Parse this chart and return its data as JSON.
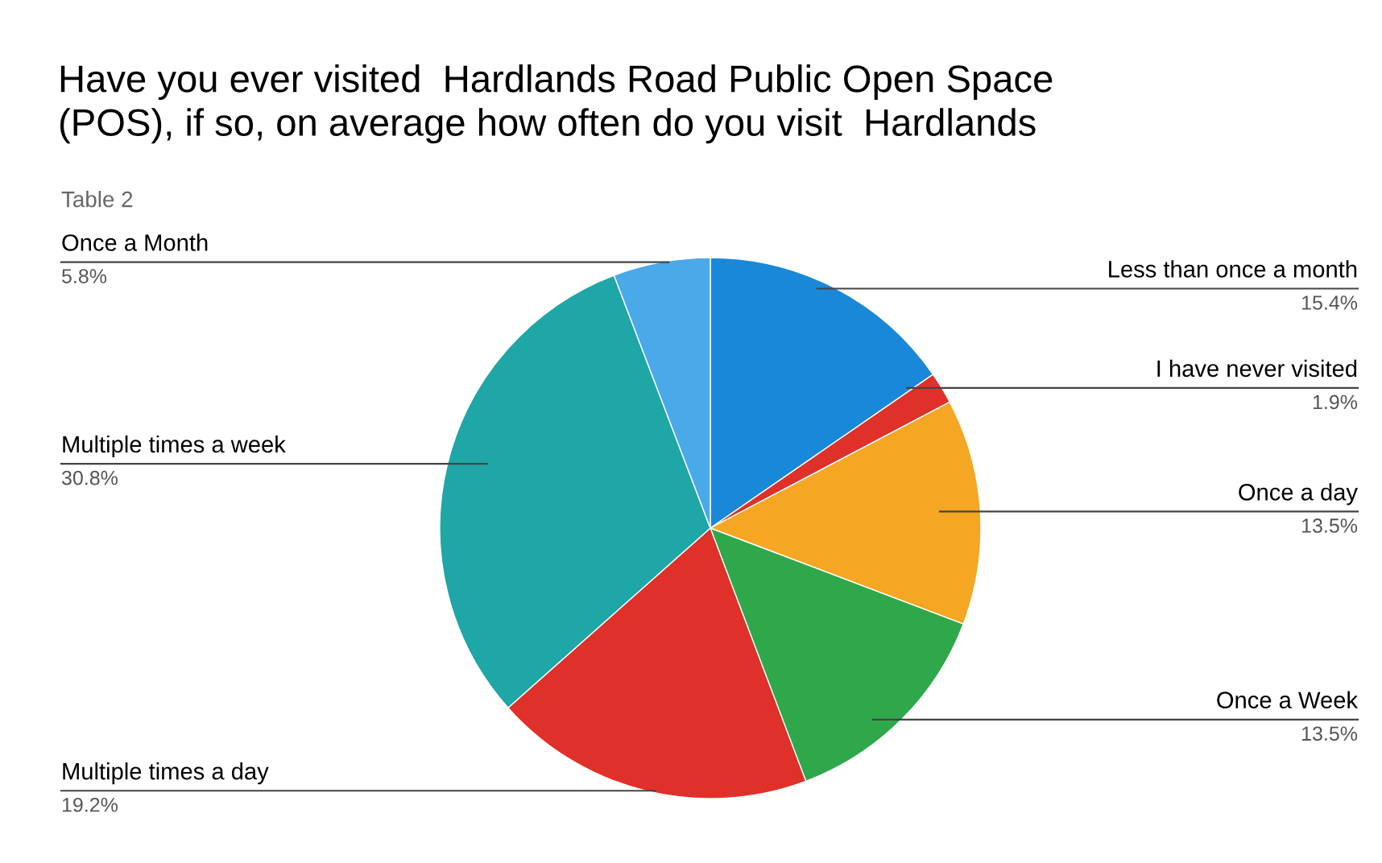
{
  "chart_data": {
    "type": "pie",
    "title": "Have you ever visited  Hardlands Road Public Open Space\n(POS), if so, on average how often do you visit  Hardlands",
    "annotations": [
      "Table 2"
    ],
    "categories": [
      "Less than once a month",
      "I have never visited",
      "Once a day",
      "Once a Week",
      "Multiple times a day",
      "Multiple times a week",
      "Once a Month"
    ],
    "values": [
      15.4,
      1.9,
      13.5,
      13.5,
      19.2,
      30.8,
      5.8
    ],
    "colors": [
      "#1a88d8",
      "#e0302a",
      "#f5a623",
      "#2ea84a",
      "#e0302a",
      "#1fa6a6",
      "#4aa9e8"
    ],
    "value_labels": [
      "15.4%",
      "1.9%",
      "13.5%",
      "13.5%",
      "19.2%",
      "30.8%",
      "5.8%"
    ]
  }
}
